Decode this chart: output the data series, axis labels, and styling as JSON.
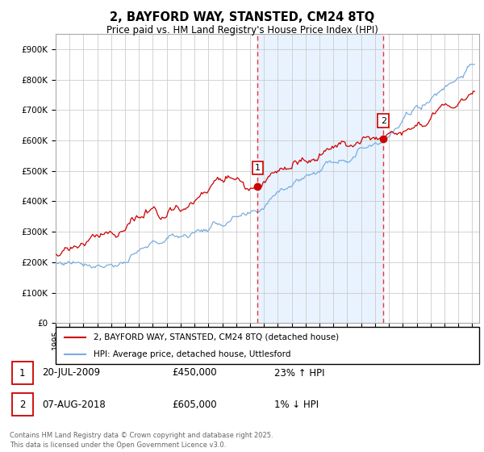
{
  "title": "2, BAYFORD WAY, STANSTED, CM24 8TQ",
  "subtitle": "Price paid vs. HM Land Registry's House Price Index (HPI)",
  "ylabel_ticks": [
    "£0",
    "£100K",
    "£200K",
    "£300K",
    "£400K",
    "£500K",
    "£600K",
    "£700K",
    "£800K",
    "£900K"
  ],
  "ylim": [
    0,
    950000
  ],
  "xlim_start": 1995.0,
  "xlim_end": 2025.5,
  "red_line_color": "#cc0000",
  "blue_line_color": "#7aade0",
  "vline_color": "#ee3333",
  "bg_shade_color": "#ddeeff",
  "marker1_x": 2009.55,
  "marker1_y": 450000,
  "marker2_x": 2018.6,
  "marker2_y": 605000,
  "legend_entry1": "2, BAYFORD WAY, STANSTED, CM24 8TQ (detached house)",
  "legend_entry2": "HPI: Average price, detached house, Uttlesford",
  "table_row1": [
    "1",
    "20-JUL-2009",
    "£450,000",
    "23% ↑ HPI"
  ],
  "table_row2": [
    "2",
    "07-AUG-2018",
    "£605,000",
    "1% ↓ HPI"
  ],
  "footer": "Contains HM Land Registry data © Crown copyright and database right 2025.\nThis data is licensed under the Open Government Licence v3.0.",
  "grid_color": "#cccccc",
  "background_color": "#ffffff"
}
